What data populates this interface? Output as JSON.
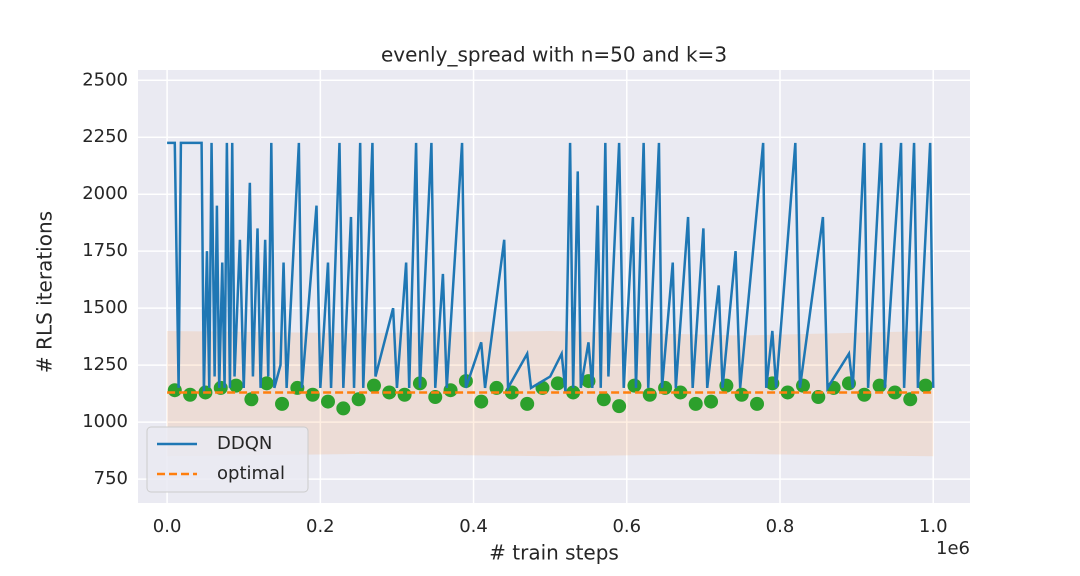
{
  "chart_data": {
    "type": "line",
    "title": "evenly_spread with n=50 and k=3",
    "xlabel": "# train steps",
    "ylabel": "# RLS iterations",
    "x_offset_label": "1e6",
    "xlim": [
      -38000,
      1048000
    ],
    "ylim": [
      645,
      2545
    ],
    "xticks": [
      {
        "value": 0,
        "label": "0.0"
      },
      {
        "value": 200000,
        "label": "0.2"
      },
      {
        "value": 400000,
        "label": "0.4"
      },
      {
        "value": 600000,
        "label": "0.6"
      },
      {
        "value": 800000,
        "label": "0.8"
      },
      {
        "value": 1000000,
        "label": "1.0"
      }
    ],
    "yticks": [
      750,
      1000,
      1250,
      1500,
      1750,
      2000,
      2250,
      2500
    ],
    "grid": true,
    "legend": "lower left",
    "background": "#eaeaf2",
    "band": {
      "color": "#ff7f0e",
      "x": [
        0,
        250000,
        500000,
        750000,
        1000000
      ],
      "lower": [
        850,
        860,
        850,
        860,
        850
      ],
      "upper": [
        1400,
        1390,
        1400,
        1380,
        1400
      ]
    },
    "eval_points": {
      "color": "#2ca02c",
      "x": [
        10000,
        30000,
        50000,
        70000,
        90000,
        110000,
        130000,
        150000,
        170000,
        190000,
        210000,
        230000,
        250000,
        270000,
        290000,
        310000,
        330000,
        350000,
        370000,
        390000,
        410000,
        430000,
        450000,
        470000,
        490000,
        510000,
        530000,
        550000,
        570000,
        590000,
        610000,
        630000,
        650000,
        670000,
        690000,
        710000,
        730000,
        750000,
        770000,
        790000,
        810000,
        830000,
        850000,
        870000,
        890000,
        910000,
        930000,
        950000,
        970000,
        990000
      ],
      "values": [
        1140,
        1120,
        1130,
        1150,
        1160,
        1100,
        1170,
        1080,
        1150,
        1120,
        1090,
        1060,
        1100,
        1160,
        1130,
        1120,
        1170,
        1110,
        1140,
        1180,
        1090,
        1150,
        1130,
        1080,
        1150,
        1170,
        1130,
        1180,
        1100,
        1070,
        1160,
        1120,
        1150,
        1130,
        1080,
        1090,
        1160,
        1120,
        1080,
        1170,
        1130,
        1160,
        1110,
        1150,
        1170,
        1120,
        1160,
        1130,
        1100,
        1160
      ]
    },
    "series": [
      {
        "name": "DDQN",
        "color": "#1f77b4",
        "x": [
          0,
          10000,
          15000,
          18000,
          25000,
          45000,
          48000,
          52000,
          55000,
          58000,
          62000,
          65000,
          68000,
          72000,
          75000,
          78000,
          82000,
          85000,
          88000,
          95000,
          100000,
          108000,
          112000,
          118000,
          122000,
          128000,
          132000,
          136000,
          140000,
          148000,
          152000,
          156000,
          172000,
          176000,
          195000,
          200000,
          210000,
          214000,
          225000,
          230000,
          240000,
          244000,
          252000,
          256000,
          268000,
          272000,
          295000,
          300000,
          312000,
          316000,
          325000,
          330000,
          345000,
          350000,
          360000,
          365000,
          385000,
          390000,
          410000,
          415000,
          440000,
          445000,
          470000,
          475000,
          500000,
          515000,
          520000,
          526000,
          530000,
          536000,
          540000,
          550000,
          555000,
          562000,
          566000,
          572000,
          576000,
          590000,
          596000,
          608000,
          612000,
          622000,
          628000,
          642000,
          646000,
          660000,
          664000,
          680000,
          686000,
          700000,
          705000,
          720000,
          725000,
          742000,
          748000,
          778000,
          782000,
          790000,
          795000,
          820000,
          826000,
          856000,
          862000,
          890000,
          895000,
          910000,
          915000,
          932000,
          937000,
          958000,
          962000,
          975000,
          980000,
          996000,
          1000000
        ],
        "values": [
          2225,
          2225,
          1150,
          2225,
          2225,
          2225,
          1130,
          1750,
          1150,
          2225,
          1200,
          1950,
          1150,
          1700,
          1150,
          2225,
          1150,
          2225,
          1200,
          1800,
          1150,
          2050,
          1200,
          1850,
          1150,
          1800,
          1200,
          2225,
          1150,
          1250,
          1700,
          1150,
          2225,
          1150,
          1950,
          1150,
          1700,
          1150,
          2225,
          1150,
          1900,
          1150,
          2225,
          1150,
          2225,
          1200,
          1500,
          1150,
          1700,
          1150,
          2225,
          1150,
          2225,
          1150,
          1650,
          1150,
          2225,
          1150,
          1350,
          1150,
          1800,
          1150,
          1300,
          1150,
          1200,
          1300,
          1130,
          2225,
          1150,
          2100,
          1150,
          1350,
          1150,
          1950,
          1150,
          2225,
          1200,
          2225,
          1150,
          1900,
          1150,
          2225,
          1150,
          2225,
          1150,
          1700,
          1150,
          1900,
          1150,
          1850,
          1150,
          1600,
          1150,
          1750,
          1150,
          2225,
          1150,
          1400,
          1150,
          2225,
          1150,
          1900,
          1150,
          1300,
          1150,
          2225,
          1150,
          2225,
          1150,
          2225,
          1150,
          2225,
          1150,
          2225,
          1150
        ]
      },
      {
        "name": "optimal",
        "color": "#ff7f0e",
        "dashed": true,
        "x": [
          0,
          1000000
        ],
        "values": [
          1130,
          1130
        ]
      }
    ]
  }
}
